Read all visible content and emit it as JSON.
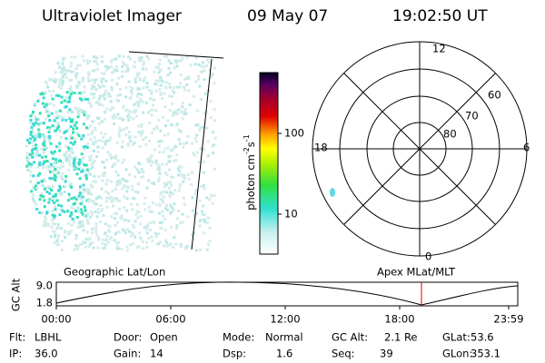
{
  "header": {
    "title": "Ultraviolet Imager",
    "date": "09 May 07",
    "time": "19:02:50 UT"
  },
  "colorbar": {
    "label": "photon cm",
    "exp1": "-2",
    "unit2": "s",
    "exp2": "-1",
    "ticks": [
      "100",
      "10"
    ]
  },
  "polar": {
    "hours": [
      "12",
      "18",
      "6",
      "0"
    ],
    "latitudes": [
      "60",
      "70",
      "80"
    ]
  },
  "timeline": {
    "left_title": "Geographic Lat/Lon",
    "right_title": "Apex MLat/MLT",
    "axis_label": "GC Alt",
    "axis_ticks": [
      "9.0",
      "1.8"
    ],
    "times": [
      "00:00",
      "06:00",
      "12:00",
      "18:00",
      "23:59"
    ]
  },
  "status": [
    [
      {
        "label": "Flt:",
        "value": "LBHL"
      },
      {
        "label": "Door:",
        "value": "Open"
      },
      {
        "label": "Mode:",
        "value": "Normal"
      },
      {
        "label": "GC Alt:",
        "value": "2.1 Re"
      },
      {
        "label": "GLat:",
        "value": "53.6"
      }
    ],
    [
      {
        "label": "IP:",
        "value": "36.0"
      },
      {
        "label": "Gain:",
        "value": "14"
      },
      {
        "label": "Dsp:",
        "value": "1.6"
      },
      {
        "label": "Seq:",
        "value": "39"
      },
      {
        "label": "GLon:",
        "value": "353.1"
      }
    ]
  ]
}
